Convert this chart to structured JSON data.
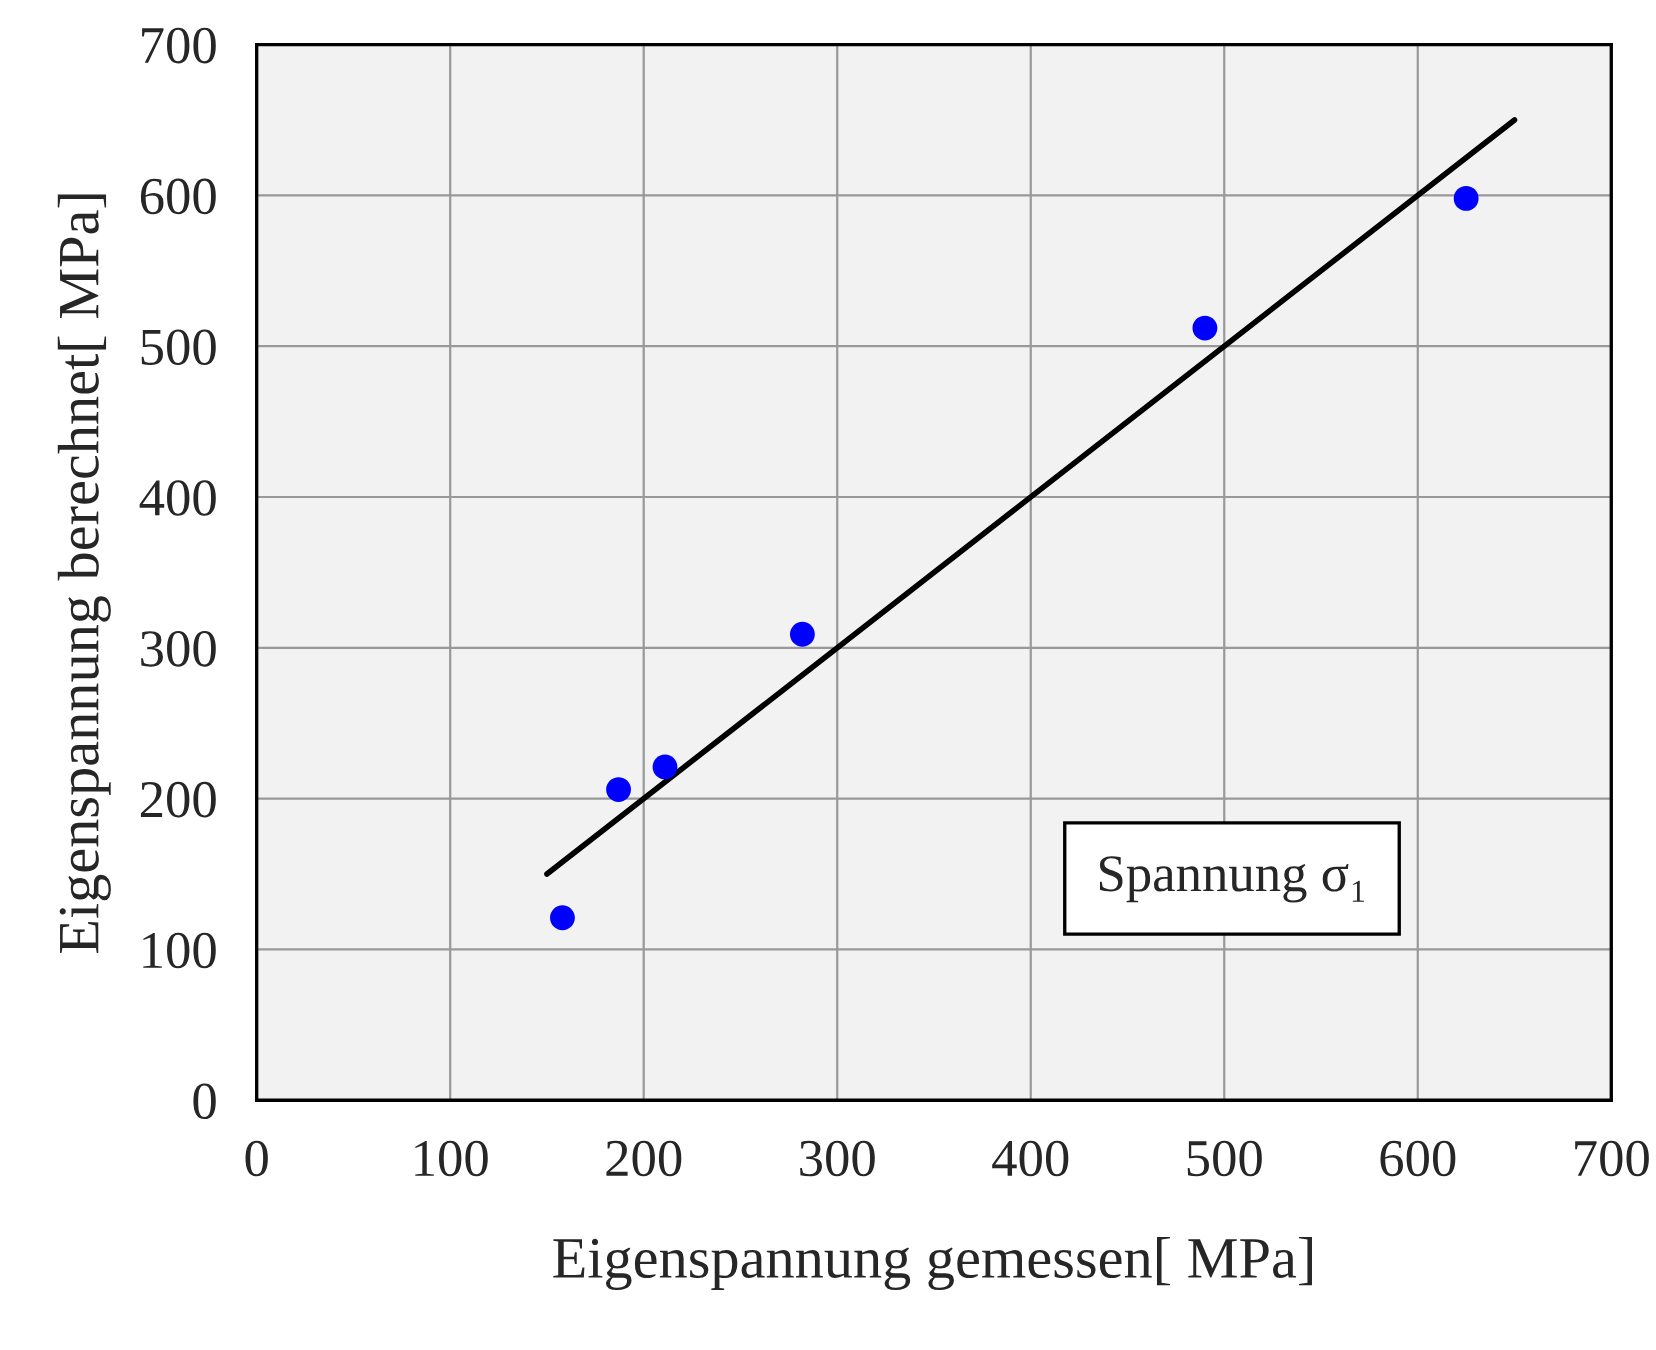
{
  "chart_data": {
    "type": "scatter",
    "xlabel": "Eigenspannung gemessen[ MPa]",
    "ylabel": "Eigenspannung berechnet[ MPa]",
    "series": [
      {
        "color": "#0000ff",
        "marker": "circle",
        "x": [
          158,
          187,
          211,
          282,
          490,
          625
        ],
        "values": [
          121,
          206,
          221,
          309,
          512,
          598
        ]
      },
      {
        "type": "line",
        "color": "#000000",
        "marker": "none",
        "line_style": "solid",
        "x": [
          150,
          650
        ],
        "values": [
          150,
          650
        ]
      }
    ],
    "annotations": [
      "Spannung σ₁"
    ],
    "xlim": [
      0,
      700
    ],
    "ylim": [
      0,
      700
    ],
    "xticks": [
      0,
      100,
      200,
      300,
      400,
      500,
      600,
      700
    ],
    "yticks": [
      0,
      100,
      200,
      300,
      400,
      500,
      600,
      700
    ],
    "grid": true,
    "legend": false
  }
}
